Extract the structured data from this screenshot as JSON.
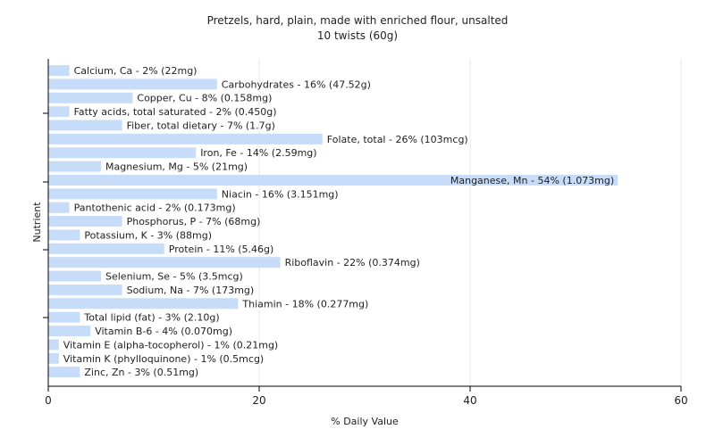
{
  "chart_data": {
    "type": "bar",
    "orientation": "horizontal",
    "title": "Pretzels, hard, plain, made with enriched flour, unsalted",
    "subtitle": "10 twists (60g)",
    "xlabel": "% Daily Value",
    "ylabel": "Nutrient",
    "xlim": [
      0,
      60
    ],
    "xticks": [
      "0",
      "20",
      "40",
      "60"
    ],
    "grid": true,
    "bar_color": "#c6dcf8",
    "categories": [
      "Calcium, Ca",
      "Carbohydrates",
      "Copper, Cu",
      "Fatty acids, total saturated",
      "Fiber, total dietary",
      "Folate, total",
      "Iron, Fe",
      "Magnesium, Mg",
      "Manganese, Mn",
      "Niacin",
      "Pantothenic acid",
      "Phosphorus, P",
      "Potassium, K",
      "Protein",
      "Riboflavin",
      "Selenium, Se",
      "Sodium, Na",
      "Thiamin",
      "Total lipid (fat)",
      "Vitamin B-6",
      "Vitamin E (alpha-tocopherol)",
      "Vitamin K (phylloquinone)",
      "Zinc, Zn"
    ],
    "values": [
      2,
      16,
      8,
      2,
      7,
      26,
      14,
      5,
      54,
      16,
      2,
      7,
      3,
      11,
      22,
      5,
      7,
      18,
      3,
      4,
      1,
      1,
      3
    ],
    "labels": [
      "Calcium, Ca - 2% (22mg)",
      "Carbohydrates - 16% (47.52g)",
      "Copper, Cu - 8% (0.158mg)",
      "Fatty acids, total saturated - 2% (0.450g)",
      "Fiber, total dietary - 7% (1.7g)",
      "Folate, total - 26% (103mcg)",
      "Iron, Fe - 14% (2.59mg)",
      "Magnesium, Mg - 5% (21mg)",
      "Manganese, Mn - 54% (1.073mg)",
      "Niacin - 16% (3.151mg)",
      "Pantothenic acid - 2% (0.173mg)",
      "Phosphorus, P - 7% (68mg)",
      "Potassium, K - 3% (88mg)",
      "Protein - 11% (5.46g)",
      "Riboflavin - 22% (0.374mg)",
      "Selenium, Se - 5% (3.5mcg)",
      "Sodium, Na - 7% (173mg)",
      "Thiamin - 18% (0.277mg)",
      "Total lipid (fat) - 3% (2.10g)",
      "Vitamin B-6 - 4% (0.070mg)",
      "Vitamin E (alpha-tocopherol) - 1% (0.21mg)",
      "Vitamin K (phylloquinone) - 1% (0.5mcg)",
      "Zinc, Zn - 3% (0.51mg)"
    ]
  }
}
